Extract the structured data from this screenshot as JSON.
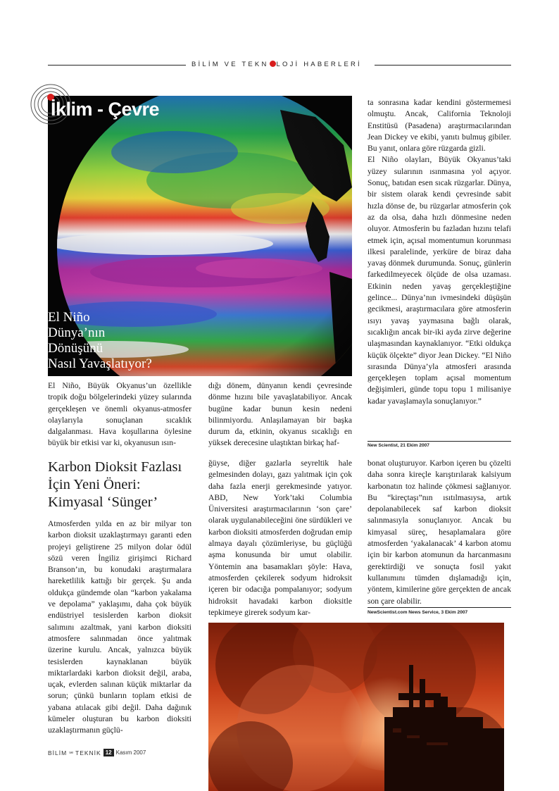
{
  "header": {
    "part1": "BİLİM VE TEKN",
    "part2": "LOJİ HABERLERİ"
  },
  "section_title": "İklim - Çevre",
  "article1": {
    "title_lines": [
      "El Niño",
      "Dünya’nın",
      "Dönüşünü",
      "Nasıl Yavaşlatıyor?"
    ],
    "col1": "El Niño, Büyük Okyanus’un özellikle tropik doğu bölgelerindeki yüzey sularında gerçekleşen ve önemli okyanus-atmosfer olaylarıyla sonuçlanan sıcaklık dalgalanması. Hava koşullarına öylesine büyük bir etkisi var ki, okyanusun ısın-",
    "col2": "dığı dönem, dünyanın kendi çevresinde dönme hızını bile yavaşlatabiliyor. Ancak bugüne kadar bunun kesin nedeni bilinmiyordu. Anlaşılamayan bir başka durum da, etkinin, okyanus sıcaklığı en yüksek derecesine ulaştıktan birkaç haf-",
    "col3_p1": "ta sonrasına kadar kendini göstermemesi olmuştu. Ancak, California Teknoloji Enstitüsü (Pasadena) araştırmacılarından Jean Dickey ve ekibi, yanıtı bulmuş gibiler. Bu yanıt, onlara göre rüzgarda gizli.",
    "col3_p2": "El Niño olayları, Büyük Okyanus’taki yüzey sularının ısınmasına yol açıyor. Sonuç, batıdan esen sıcak rüzgarlar. Dünya, bir sistem olarak kendi çevresinde sabit hızla dönse de, bu rüzgarlar atmosferin çok az da olsa, daha hızlı dönmesine neden oluyor. Atmosferin bu fazladan hızını telafi etmek için, açısal momentumun korunması ilkesi paralelinde, yerküre de biraz daha yavaş dönmek durumunda. Sonuç, günlerin farkedilmeyecek ölçüde de olsa uzaması. Etkinin neden yavaş gerçekleştiğine gelince... Dünya’nın ivmesindeki düşüşün gecikmesi, araştırmacılara göre atmosferin ısıyı yavaş yaymasına bağlı olarak, sıcaklığın ancak bir-iki ayda zirve değerine ulaşmasından kaynaklanıyor. “Etki oldukça küçük ölçekte” diyor Jean Dickey. “El Niño sırasında Dünya’yla atmosferi arasında gerçekleşen toplam açısal momentum değişimleri, günde topu topu 1 milisaniye kadar yavaşlamayla sonuçlanıyor.”",
    "source": "New Scientist, 21 Ekim 2007"
  },
  "article2": {
    "title_lines": [
      "Karbon Dioksit Fazlası",
      "İçin Yeni Öneri:",
      "Kimyasal ‘Sünger’"
    ],
    "col1": "Atmosferden yılda en az bir milyar ton karbon dioksit uzaklaştırmayı garanti eden projeyi geliştirene 25 milyon dolar ödül sözü veren İngiliz girişimci Richard Branson’ın, bu konudaki araştırmalara hareketlilik kattığı bir gerçek. Şu anda oldukça gündemde olan “karbon yakalama ve depolama” yaklaşımı, daha çok büyük endüstriyel tesislerden karbon dioksit salımını azaltmak, yani karbon dioksiti atmosfere salınmadan önce yalıtmak üzerine kurulu. Ancak, yalnızca büyük tesislerden kaynaklanan büyük miktarlardaki karbon dioksit değil, araba, uçak, evlerden salınan küçük miktarlar da sorun; çünkü bunların toplam etkisi de yabana atılacak gibi değil. Daha dağınık kümeler oluşturan bu karbon dioksiti uzaklaştırmanın güçlü-",
    "col2": "ğüyse, diğer gazlarla seyreltik hale gelmesinden dolayı, gazı yalıtmak için çok daha fazla enerji gerekmesinde yatıyor. ABD, New York’taki Columbia Üniversitesi araştırmacılarının ‘son çare’ olarak uygulanabileceğini öne sürdükleri ve karbon dioksiti atmosferden doğrudan emip almaya dayalı çözümleriyse, bu güçlüğü aşma konusunda bir umut olabilir. Yöntemin ana basamakları şöyle: Hava, atmosferden çekilerek sodyum hidroksit içeren bir odacığa pompalanıyor; sodyum hidroksit havadaki karbon dioksitle tepkimeye girerek sodyum kar-",
    "col3": "bonat oluşturuyor. Karbon içeren bu çözelti daha sonra kireçle karıştırılarak kalsiyum karbonatın toz halinde çökmesi sağlanıyor. Bu “kireçtaşı”nın ısıtılmasıysa, artık depolanabilecek saf karbon dioksit salınmasıyla sonuçlanıyor. Ancak bu kimyasal süreç, hesaplamalara göre atmosferden ‘yakalanacak’ 4 karbon atomu için bir karbon atomunun da harcanmasını gerektirdiği ve sonuçta fosil yakıt kullanımını tümden dışlamadığı için, yöntem, kimilerine göre gerçekten de ancak son çare olabilir.",
    "source": "NewScientist.com News Service, 3 Ekim 2007"
  },
  "footer": {
    "brand_left": "BİLİM",
    "brand_mid": "ve",
    "brand_right": "TEKNİK",
    "page_number": "12",
    "date": "Kasım 2007"
  }
}
